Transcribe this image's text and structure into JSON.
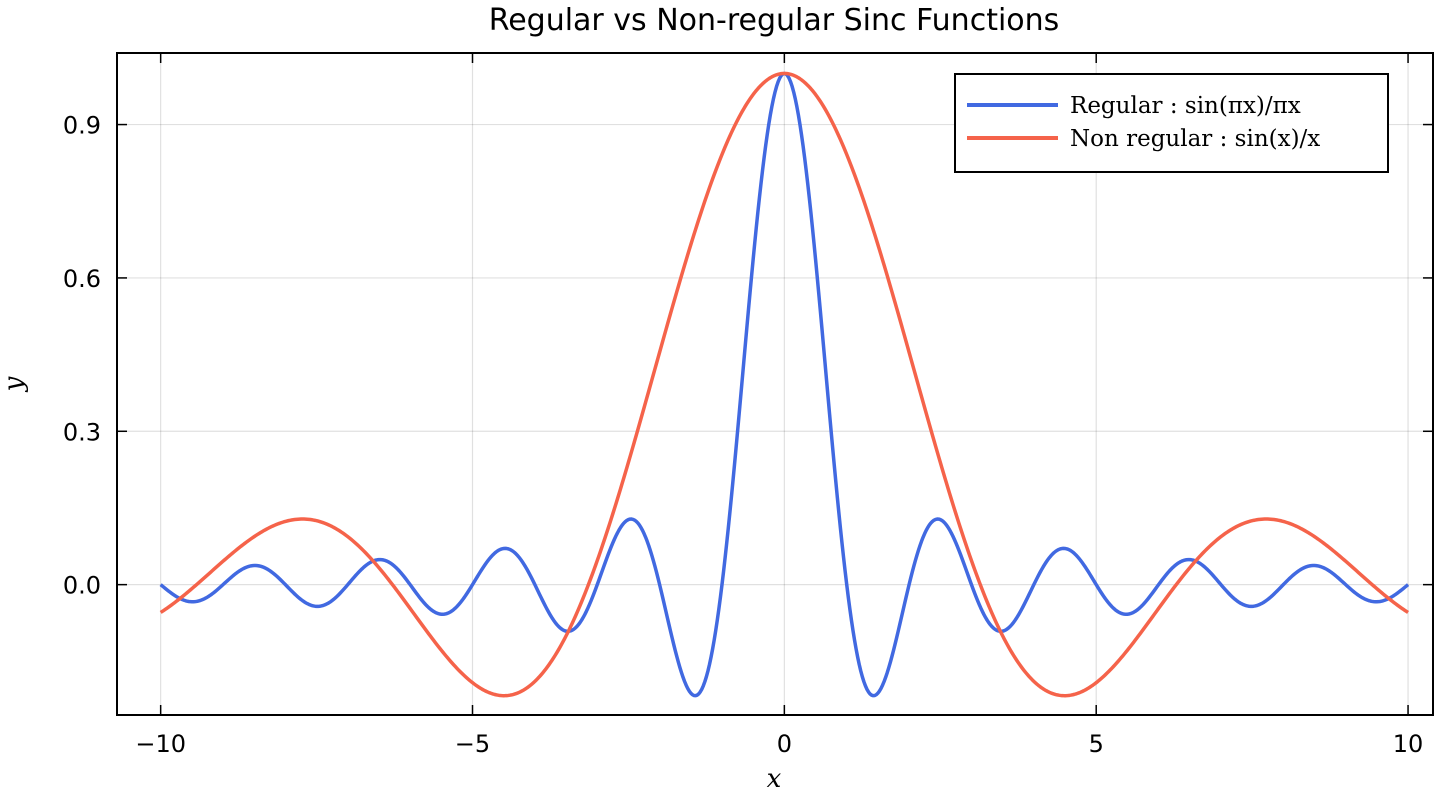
{
  "chart_data": {
    "type": "line",
    "title": "Regular vs Non-regular Sinc Functions",
    "xlabel": "x",
    "ylabel": "y",
    "xlim": [
      -10.7,
      10.4
    ],
    "ylim": [
      -0.255,
      1.04
    ],
    "xticks": [
      -10,
      -5,
      0,
      5,
      10
    ],
    "xtick_labels": [
      "−10",
      "−5",
      "0",
      "5",
      "10"
    ],
    "yticks": [
      0.0,
      0.3,
      0.6,
      0.9
    ],
    "ytick_labels": [
      "0.0",
      "0.3",
      "0.6",
      "0.9"
    ],
    "grid": true,
    "legend_position": "top-right",
    "x_range": [
      -10,
      10
    ],
    "series": [
      {
        "name": "Regular :  sin(πx)/πx",
        "color": "#4169E1",
        "x": [
          -10,
          -9.5,
          -9,
          -8.5,
          -8,
          -7.5,
          -7,
          -6.5,
          -6,
          -5.5,
          -5,
          -4.5,
          -4,
          -3.5,
          -3,
          -2.5,
          -2,
          -1.5,
          -1,
          -0.5,
          0,
          0.5,
          1,
          1.5,
          2,
          2.5,
          3,
          3.5,
          4,
          4.5,
          5,
          5.5,
          6,
          6.5,
          7,
          7.5,
          8,
          8.5,
          9,
          9.5,
          10
        ],
        "y": [
          0.0,
          -0.034,
          0.0,
          0.037,
          0.0,
          -0.042,
          0.0,
          0.049,
          0.0,
          -0.058,
          0.0,
          0.071,
          0.0,
          -0.091,
          0.0,
          0.127,
          0.0,
          -0.212,
          0.0,
          0.637,
          1.0,
          0.637,
          0.0,
          -0.212,
          0.0,
          0.127,
          0.0,
          -0.091,
          0.0,
          0.071,
          0.0,
          -0.058,
          0.0,
          0.049,
          0.0,
          -0.042,
          0.0,
          0.037,
          0.0,
          -0.034,
          0.0
        ]
      },
      {
        "name": "Non regular :  sin(x)/x",
        "color": "#F5634A",
        "x": [
          -10,
          -9,
          -8,
          -7,
          -6,
          -5,
          -4,
          -3,
          -2,
          -1,
          0,
          1,
          2,
          3,
          4,
          5,
          6,
          7,
          8,
          9,
          10
        ],
        "y": [
          -0.054,
          0.046,
          0.124,
          0.094,
          -0.047,
          -0.192,
          -0.189,
          0.047,
          0.455,
          0.841,
          1.0,
          0.841,
          0.455,
          0.047,
          -0.189,
          -0.192,
          -0.047,
          0.094,
          0.124,
          0.046,
          -0.054
        ]
      }
    ]
  }
}
